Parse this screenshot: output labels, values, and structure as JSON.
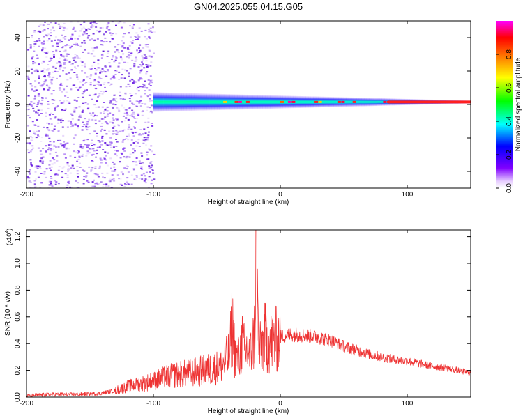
{
  "page": {
    "title": "GN04.2025.055.04.15.G05"
  },
  "chart_data": [
    {
      "type": "heatmap",
      "xlabel": "Height of straight line (km)",
      "ylabel": "Frequency (Hz)",
      "xlim": [
        -200,
        150
      ],
      "ylim": [
        -50,
        50
      ],
      "xticks": [
        -200,
        -100,
        0,
        100
      ],
      "yticks": [
        -40,
        -20,
        0,
        20,
        40
      ],
      "colorbar": {
        "label": "Normalized spectral amplitude",
        "range": [
          0,
          1
        ],
        "ticks": [
          "0.0",
          "0.2",
          "0.4",
          "0.6",
          "0.8"
        ],
        "colors": [
          "#ffffff",
          "#8000ff",
          "#0000ff",
          "#00ffff",
          "#00ff00",
          "#ffff00",
          "#ff8000",
          "#ff0000",
          "#ff00ff"
        ]
      },
      "ridge": {
        "frequency_hz": 1.5,
        "start_height_km": -100,
        "end_height_km": 150,
        "noise_band_edge_km": -100
      }
    },
    {
      "type": "line",
      "xlabel": "Height of straight line (km)",
      "ylabel": "SNR (10 * v/v)",
      "y_multiplier": "(x10",
      "y_multiplier_exp": "4",
      "y_multiplier_close": ")",
      "xlim": [
        -200,
        150
      ],
      "ylim": [
        0,
        1.25
      ],
      "xticks": [
        -200,
        -100,
        0,
        100
      ],
      "yticks": [
        "0.0",
        "0.2",
        "0.4",
        "0.6",
        "0.8",
        "1.0",
        "1.2"
      ],
      "series": [
        {
          "color": "#ee3333",
          "x": [
            -200,
            -180,
            -160,
            -140,
            -130,
            -120,
            -110,
            -100,
            -90,
            -80,
            -70,
            -60,
            -50,
            -45,
            -40,
            -38,
            -36,
            -34,
            -32,
            -30,
            -28,
            -26,
            -24,
            -22,
            -20,
            -19,
            -18,
            -17,
            -16,
            -14,
            -12,
            -10,
            -8,
            -5,
            0,
            10,
            20,
            30,
            40,
            50,
            60,
            70,
            80,
            90,
            100,
            110,
            120,
            130,
            140,
            150
          ],
          "y": [
            0.01,
            0.02,
            0.02,
            0.03,
            0.05,
            0.08,
            0.1,
            0.12,
            0.15,
            0.17,
            0.18,
            0.2,
            0.22,
            0.25,
            0.32,
            0.55,
            0.35,
            0.28,
            0.3,
            0.42,
            0.33,
            0.36,
            0.3,
            0.38,
            0.5,
            1.25,
            0.7,
            0.4,
            0.35,
            0.4,
            0.45,
            0.42,
            0.4,
            0.42,
            0.45,
            0.47,
            0.46,
            0.45,
            0.42,
            0.38,
            0.35,
            0.32,
            0.3,
            0.28,
            0.27,
            0.25,
            0.23,
            0.22,
            0.2,
            0.18
          ]
        }
      ]
    }
  ]
}
